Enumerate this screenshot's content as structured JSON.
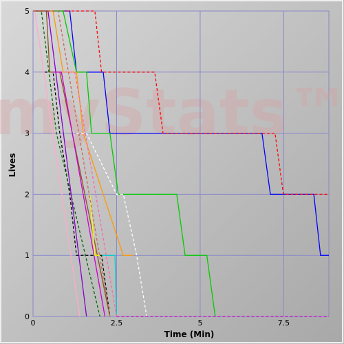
{
  "chart_data": {
    "type": "line",
    "watermark": "myStats™",
    "ylabel": "Lives",
    "xlabel": "Time (Min)",
    "xlim": [
      0,
      8.85
    ],
    "ylim": [
      0,
      5
    ],
    "xticks": [
      0,
      2.5,
      5,
      7.5
    ],
    "yticks": [
      0,
      1,
      2,
      3,
      4,
      5
    ],
    "grid": true,
    "series": [
      {
        "color": "#0000ff",
        "dashed": false,
        "x": [
          0,
          1.1,
          1.3,
          2.1,
          2.3,
          6.85,
          7.1,
          8.4,
          8.6,
          8.85
        ],
        "values": [
          5,
          5,
          4,
          4,
          3,
          3,
          2,
          2,
          1,
          1
        ]
      },
      {
        "color": "#ff0000",
        "dashed": true,
        "x": [
          0,
          1.85,
          2.05,
          3.64,
          3.89,
          7.24,
          7.49,
          8.85
        ],
        "values": [
          5,
          5,
          4,
          4,
          3,
          3,
          2,
          2
        ]
      },
      {
        "color": "#00cc00",
        "dashed": false,
        "x": [
          0,
          0.9,
          1.3,
          1.6,
          1.75,
          2.3,
          2.55,
          4.3,
          4.55,
          5.2,
          5.45
        ],
        "values": [
          5,
          5,
          4,
          4,
          3,
          3,
          2,
          2,
          1,
          1,
          0
        ]
      },
      {
        "color": "#ff9900",
        "dashed": false,
        "x": [
          0,
          0.6,
          0.9,
          1.3,
          1.5,
          2.1,
          2.7,
          3.0
        ],
        "values": [
          5,
          5,
          4,
          4,
          3,
          2,
          1,
          1
        ]
      },
      {
        "color": "#ffffff",
        "dashed": true,
        "x": [
          1.3,
          1.6,
          2.5,
          2.7,
          3.1,
          3.4
        ],
        "values": [
          3,
          3,
          2,
          2,
          1,
          0
        ]
      },
      {
        "color": "#00cccc",
        "dashed": false,
        "x": [
          1.8,
          2.45,
          2.5
        ],
        "values": [
          1,
          1,
          0
        ]
      },
      {
        "color": "#000000",
        "dashed": true,
        "x": [
          0.35,
          0.6,
          0.8,
          1.1,
          1.3,
          2.05,
          2.3
        ],
        "values": [
          4,
          4,
          3,
          2,
          1,
          1,
          0
        ]
      },
      {
        "color": "#006600",
        "dashed": true,
        "x": [
          0,
          0.25,
          0.7,
          2.0
        ],
        "values": [
          5,
          5,
          3,
          0
        ]
      },
      {
        "color": "#8800cc",
        "dashed": false,
        "x": [
          0,
          0.45,
          1.6
        ],
        "values": [
          5,
          5,
          0
        ]
      },
      {
        "color": "#885522",
        "dashed": false,
        "x": [
          0,
          0.4,
          0.5,
          0.8,
          2.3
        ],
        "values": [
          5,
          5,
          4,
          4,
          0
        ]
      },
      {
        "color": "#ffaacc",
        "dashed": false,
        "x": [
          0,
          0.05,
          1.4
        ],
        "values": [
          5,
          5,
          0
        ]
      },
      {
        "color": "#ff66aa",
        "dashed": true,
        "x": [
          0.95,
          1.25,
          2.5
        ],
        "values": [
          4,
          4,
          0
        ]
      },
      {
        "color": "#cc00cc",
        "dashed": false,
        "x": [
          0.6,
          0.85,
          2.15
        ],
        "values": [
          4,
          4,
          0
        ]
      },
      {
        "color": "#ffff00",
        "dashed": false,
        "x": [
          1.7,
          1.85,
          2.0
        ],
        "values": [
          2,
          1,
          1
        ]
      },
      {
        "color": "#cc00cc",
        "dashed": true,
        "x": [
          2.5,
          8.85
        ],
        "values": [
          0,
          0
        ]
      },
      {
        "color": "#cc6655",
        "dashed": true,
        "x": [
          0,
          0.75,
          2.3
        ],
        "values": [
          5,
          5,
          0
        ]
      }
    ]
  }
}
